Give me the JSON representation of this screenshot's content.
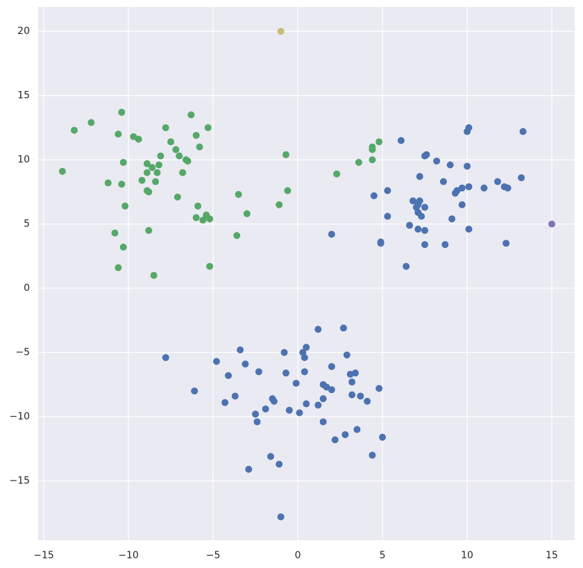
{
  "chart_data": {
    "type": "scatter",
    "xlim": [
      -15.33,
      16.35
    ],
    "ylim": [
      -19.62,
      21.9
    ],
    "xticks": [
      {
        "value": -15,
        "label": "−15"
      },
      {
        "value": -10,
        "label": "−10"
      },
      {
        "value": -5,
        "label": "−5"
      },
      0,
      5,
      10,
      15
    ],
    "yticks": [
      {
        "value": -15,
        "label": "−15"
      },
      {
        "value": -10,
        "label": "−10"
      },
      {
        "value": -5,
        "label": "−5"
      },
      0,
      5,
      10,
      15,
      20
    ],
    "grid": true,
    "series": [
      {
        "color": "#55a868",
        "x": [
          -13.9,
          -13.2,
          -12.2,
          -11.2,
          -10.8,
          -10.6,
          -10.6,
          -10.4,
          -10.3,
          -10.3,
          -10.4,
          -10.2,
          -9.7,
          -9.4,
          -9.2,
          -8.9,
          -8.9,
          -8.9,
          -8.8,
          -8.8,
          -8.6,
          -8.5,
          -8.4,
          -8.3,
          -8.2,
          -8.1,
          -7.8,
          -7.5,
          -7.2,
          -7.1,
          -7.0,
          -6.8,
          -6.6,
          -6.5,
          -6.3,
          -6.0,
          -6.0,
          -5.9,
          -5.8,
          -5.6,
          -5.4,
          -5.3,
          -5.2,
          -5.2,
          -3.6,
          -3.5,
          -3.0,
          -1.1,
          -0.7,
          -0.6,
          2.3,
          3.6,
          4.4,
          4.4,
          4.4,
          4.8
        ],
        "values": [
          9.1,
          12.3,
          12.9,
          8.2,
          4.3,
          12.0,
          1.6,
          13.7,
          3.2,
          9.8,
          8.1,
          6.4,
          11.8,
          11.6,
          8.4,
          9.7,
          9.0,
          7.6,
          7.5,
          4.5,
          9.4,
          1.0,
          8.3,
          9.0,
          9.6,
          10.3,
          12.5,
          11.4,
          10.8,
          7.1,
          10.3,
          9.0,
          10.0,
          9.9,
          13.5,
          5.5,
          11.9,
          6.4,
          11.0,
          5.3,
          5.7,
          12.5,
          5.4,
          1.7,
          4.1,
          7.3,
          5.8,
          6.5,
          10.4,
          7.6,
          8.9,
          9.8,
          10.0,
          10.8,
          11.0,
          11.4
        ]
      },
      {
        "color": "#4c72b0",
        "x": [
          2.0,
          4.5,
          4.9,
          4.9,
          5.3,
          5.3,
          6.1,
          6.4,
          6.6,
          6.8,
          7.0,
          7.1,
          7.1,
          7.1,
          7.2,
          7.2,
          7.3,
          7.5,
          7.6,
          7.5,
          7.5,
          7.5,
          8.2,
          8.6,
          8.7,
          9.0,
          9.1,
          9.3,
          9.4,
          9.7,
          9.7,
          10.0,
          10.1,
          10.0,
          10.1,
          10.1,
          11.0,
          11.8,
          12.2,
          12.4,
          12.3,
          13.2,
          13.3,
          -7.8,
          -6.1,
          -4.8,
          -4.3,
          -4.1,
          -3.7,
          -3.4,
          -3.1,
          -2.9,
          -2.5,
          -2.4,
          -2.3,
          -1.9,
          -1.6,
          -1.5,
          -1.4,
          -1.1,
          -1.0,
          -0.8,
          -0.7,
          -0.5,
          -0.1,
          0.1,
          0.3,
          0.4,
          0.5,
          0.4,
          0.5,
          1.2,
          1.2,
          1.5,
          1.5,
          1.5,
          1.7,
          2.0,
          2.0,
          2.2,
          2.7,
          2.8,
          2.9,
          3.1,
          3.2,
          3.2,
          3.4,
          3.5,
          3.7,
          4.1,
          4.4,
          4.8,
          5.0
        ],
        "values": [
          4.2,
          7.2,
          3.6,
          3.5,
          7.6,
          5.6,
          11.5,
          1.7,
          4.9,
          6.8,
          6.3,
          4.6,
          6.5,
          5.9,
          6.8,
          8.7,
          5.6,
          10.3,
          10.4,
          3.4,
          6.3,
          4.5,
          9.9,
          8.3,
          3.4,
          9.6,
          5.4,
          7.4,
          7.6,
          6.5,
          7.8,
          12.2,
          12.5,
          9.5,
          7.9,
          4.6,
          7.8,
          8.3,
          7.9,
          7.8,
          3.5,
          8.6,
          12.2,
          -5.4,
          -8.0,
          -5.7,
          -8.9,
          -6.8,
          -8.4,
          -4.8,
          -5.9,
          -14.1,
          -9.8,
          -10.4,
          -6.5,
          -9.4,
          -13.1,
          -8.6,
          -8.8,
          -13.7,
          -17.8,
          -5.0,
          -6.6,
          -9.5,
          -7.4,
          -9.7,
          -5.0,
          -5.4,
          -4.6,
          -6.5,
          -9.0,
          -3.2,
          -9.1,
          -7.5,
          -8.6,
          -10.4,
          -7.7,
          -6.1,
          -7.9,
          -11.8,
          -3.1,
          -11.4,
          -5.2,
          -6.7,
          -7.3,
          -8.3,
          -6.6,
          -11.0,
          -8.4,
          -8.8,
          -13.0,
          -7.8,
          -11.6
        ]
      },
      {
        "color": "#ccb974",
        "x": [
          -1.0
        ],
        "values": [
          20.0
        ]
      },
      {
        "color": "#8172b2",
        "x": [
          15.0
        ],
        "values": [
          5.0
        ]
      }
    ]
  }
}
